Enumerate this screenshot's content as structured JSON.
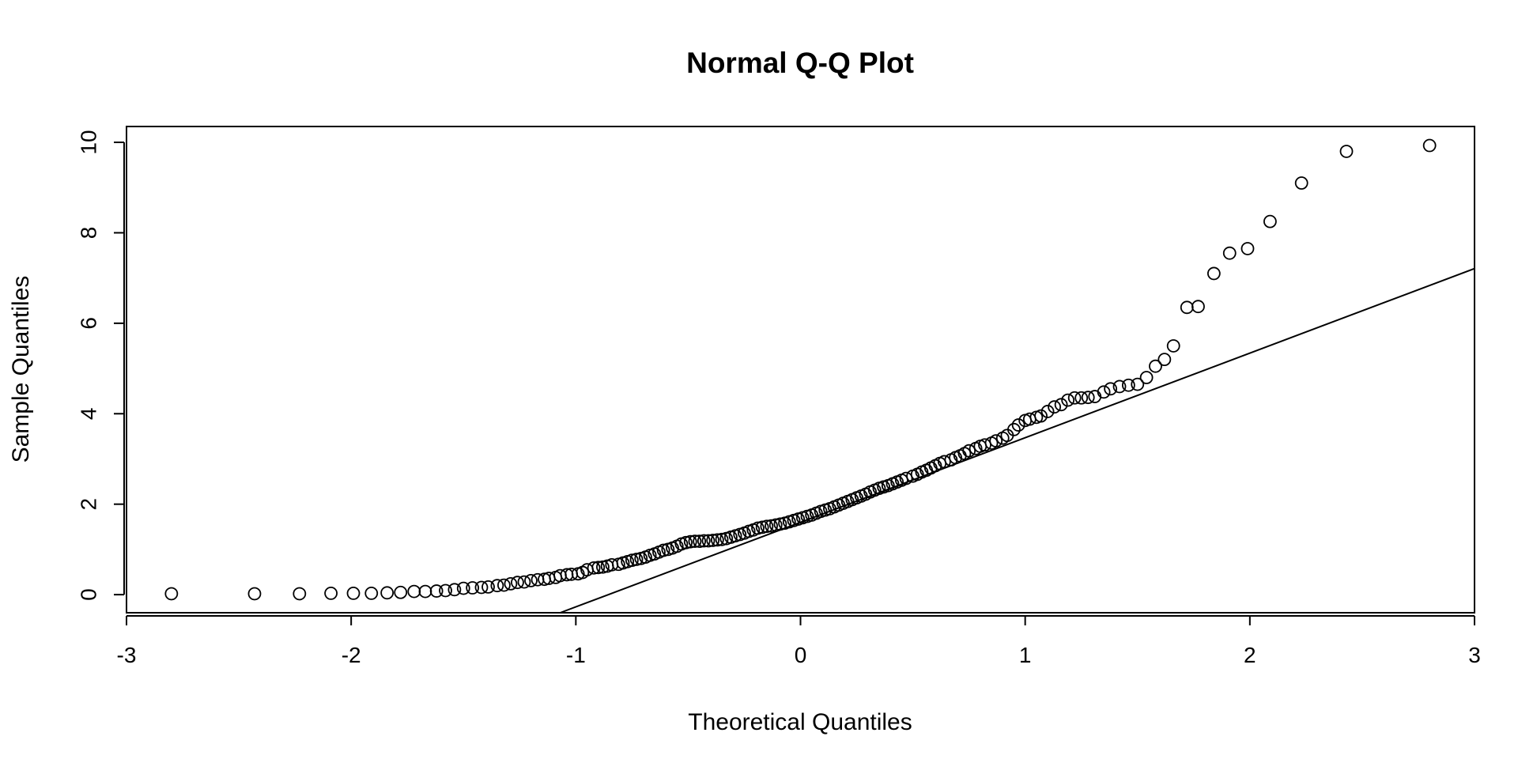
{
  "chart_data": {
    "type": "scatter",
    "title": "Normal Q-Q Plot",
    "xlabel": "Theoretical Quantiles",
    "ylabel": "Sample Quantiles",
    "xlim": [
      -3.0,
      3.0
    ],
    "ylim": [
      -0.4,
      10.35
    ],
    "x_ticks": [
      -3,
      -2,
      -1,
      0,
      1,
      2,
      3
    ],
    "y_ticks": [
      0,
      2,
      4,
      6,
      8,
      10
    ],
    "reference_line": {
      "slope": 1.87,
      "intercept": 1.6
    },
    "grid": false,
    "legend": "none",
    "points": [
      [
        -2.8,
        0.02
      ],
      [
        -2.43,
        0.02
      ],
      [
        -2.23,
        0.02
      ],
      [
        -2.09,
        0.03
      ],
      [
        -1.99,
        0.03
      ],
      [
        -1.91,
        0.03
      ],
      [
        -1.84,
        0.04
      ],
      [
        -1.78,
        0.05
      ],
      [
        -1.72,
        0.07
      ],
      [
        -1.67,
        0.07
      ],
      [
        -1.62,
        0.08
      ],
      [
        -1.58,
        0.09
      ],
      [
        -1.54,
        0.11
      ],
      [
        -1.5,
        0.14
      ],
      [
        -1.46,
        0.15
      ],
      [
        -1.42,
        0.16
      ],
      [
        -1.39,
        0.17
      ],
      [
        -1.35,
        0.2
      ],
      [
        -1.32,
        0.21
      ],
      [
        -1.29,
        0.24
      ],
      [
        -1.26,
        0.27
      ],
      [
        -1.23,
        0.28
      ],
      [
        -1.2,
        0.31
      ],
      [
        -1.17,
        0.33
      ],
      [
        -1.14,
        0.34
      ],
      [
        -1.12,
        0.36
      ],
      [
        -1.09,
        0.38
      ],
      [
        -1.07,
        0.42
      ],
      [
        -1.04,
        0.44
      ],
      [
        -1.02,
        0.45
      ],
      [
        -0.99,
        0.46
      ],
      [
        -0.97,
        0.49
      ],
      [
        -0.95,
        0.55
      ],
      [
        -0.92,
        0.59
      ],
      [
        -0.9,
        0.6
      ],
      [
        -0.88,
        0.61
      ],
      [
        -0.86,
        0.63
      ],
      [
        -0.84,
        0.66
      ],
      [
        -0.81,
        0.67
      ],
      [
        -0.79,
        0.7
      ],
      [
        -0.77,
        0.73
      ],
      [
        -0.75,
        0.76
      ],
      [
        -0.73,
        0.78
      ],
      [
        -0.71,
        0.8
      ],
      [
        -0.69,
        0.83
      ],
      [
        -0.67,
        0.87
      ],
      [
        -0.65,
        0.9
      ],
      [
        -0.63,
        0.94
      ],
      [
        -0.61,
        0.98
      ],
      [
        -0.59,
        1.0
      ],
      [
        -0.57,
        1.03
      ],
      [
        -0.55,
        1.07
      ],
      [
        -0.53,
        1.12
      ],
      [
        -0.51,
        1.15
      ],
      [
        -0.49,
        1.17
      ],
      [
        -0.47,
        1.18
      ],
      [
        -0.45,
        1.18
      ],
      [
        -0.43,
        1.19
      ],
      [
        -0.41,
        1.19
      ],
      [
        -0.39,
        1.2
      ],
      [
        -0.37,
        1.21
      ],
      [
        -0.35,
        1.22
      ],
      [
        -0.33,
        1.24
      ],
      [
        -0.31,
        1.27
      ],
      [
        -0.29,
        1.3
      ],
      [
        -0.27,
        1.33
      ],
      [
        -0.25,
        1.36
      ],
      [
        -0.23,
        1.4
      ],
      [
        -0.21,
        1.43
      ],
      [
        -0.19,
        1.47
      ],
      [
        -0.17,
        1.49
      ],
      [
        -0.15,
        1.51
      ],
      [
        -0.13,
        1.52
      ],
      [
        -0.11,
        1.54
      ],
      [
        -0.09,
        1.56
      ],
      [
        -0.07,
        1.58
      ],
      [
        -0.05,
        1.61
      ],
      [
        -0.03,
        1.64
      ],
      [
        -0.01,
        1.67
      ],
      [
        0.01,
        1.7
      ],
      [
        0.03,
        1.73
      ],
      [
        0.05,
        1.76
      ],
      [
        0.07,
        1.8
      ],
      [
        0.09,
        1.84
      ],
      [
        0.11,
        1.87
      ],
      [
        0.13,
        1.9
      ],
      [
        0.15,
        1.94
      ],
      [
        0.17,
        1.98
      ],
      [
        0.19,
        2.02
      ],
      [
        0.21,
        2.06
      ],
      [
        0.23,
        2.1
      ],
      [
        0.25,
        2.14
      ],
      [
        0.27,
        2.18
      ],
      [
        0.29,
        2.22
      ],
      [
        0.31,
        2.27
      ],
      [
        0.33,
        2.31
      ],
      [
        0.35,
        2.35
      ],
      [
        0.37,
        2.38
      ],
      [
        0.39,
        2.41
      ],
      [
        0.41,
        2.45
      ],
      [
        0.43,
        2.49
      ],
      [
        0.45,
        2.53
      ],
      [
        0.47,
        2.57
      ],
      [
        0.5,
        2.62
      ],
      [
        0.52,
        2.66
      ],
      [
        0.54,
        2.71
      ],
      [
        0.56,
        2.75
      ],
      [
        0.58,
        2.8
      ],
      [
        0.6,
        2.85
      ],
      [
        0.62,
        2.9
      ],
      [
        0.64,
        2.94
      ],
      [
        0.67,
        2.98
      ],
      [
        0.69,
        3.03
      ],
      [
        0.71,
        3.07
      ],
      [
        0.73,
        3.12
      ],
      [
        0.75,
        3.18
      ],
      [
        0.78,
        3.23
      ],
      [
        0.8,
        3.28
      ],
      [
        0.82,
        3.31
      ],
      [
        0.85,
        3.35
      ],
      [
        0.87,
        3.4
      ],
      [
        0.9,
        3.46
      ],
      [
        0.92,
        3.52
      ],
      [
        0.95,
        3.65
      ],
      [
        0.97,
        3.75
      ],
      [
        1.0,
        3.85
      ],
      [
        1.02,
        3.88
      ],
      [
        1.05,
        3.92
      ],
      [
        1.07,
        3.95
      ],
      [
        1.1,
        4.05
      ],
      [
        1.13,
        4.15
      ],
      [
        1.16,
        4.2
      ],
      [
        1.19,
        4.3
      ],
      [
        1.22,
        4.35
      ],
      [
        1.25,
        4.35
      ],
      [
        1.28,
        4.36
      ],
      [
        1.31,
        4.38
      ],
      [
        1.35,
        4.48
      ],
      [
        1.38,
        4.55
      ],
      [
        1.42,
        4.6
      ],
      [
        1.46,
        4.63
      ],
      [
        1.5,
        4.65
      ],
      [
        1.54,
        4.8
      ],
      [
        1.58,
        5.05
      ],
      [
        1.62,
        5.2
      ],
      [
        1.66,
        5.5
      ],
      [
        1.72,
        6.35
      ],
      [
        1.77,
        6.37
      ],
      [
        1.84,
        7.1
      ],
      [
        1.91,
        7.55
      ],
      [
        1.99,
        7.65
      ],
      [
        2.09,
        8.25
      ],
      [
        2.23,
        9.1
      ],
      [
        2.43,
        9.8
      ],
      [
        2.8,
        9.93
      ]
    ]
  }
}
